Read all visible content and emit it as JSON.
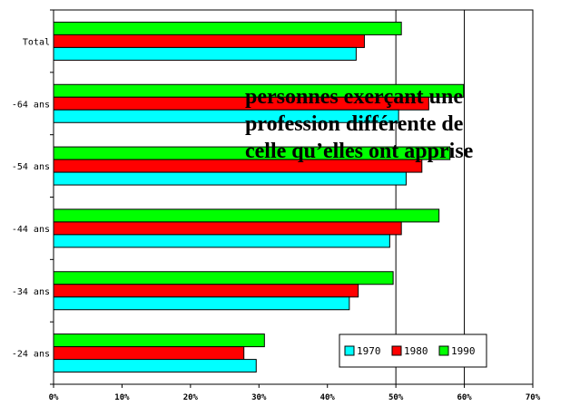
{
  "chart_data": {
    "type": "bar",
    "orientation": "horizontal",
    "categories": [
      "Total",
      "55-64 ans",
      "45-54 ans",
      "35-44 ans",
      "25-34 ans",
      "15-24 ans"
    ],
    "category_labels_visible": [
      "Total",
      "-64 ans",
      "-54 ans",
      "-44 ans",
      "-34 ans",
      "-24 ans"
    ],
    "series": [
      {
        "name": "1970",
        "color": "#00ffff",
        "values": [
          44.2,
          50.4,
          51.5,
          49.1,
          43.2,
          29.6
        ]
      },
      {
        "name": "1980",
        "color": "#ff0000",
        "values": [
          45.4,
          54.8,
          53.8,
          50.8,
          44.5,
          27.8
        ]
      },
      {
        "name": "1990",
        "color": "#00ff00",
        "values": [
          50.8,
          59.9,
          57.9,
          56.3,
          49.6,
          30.8
        ]
      }
    ],
    "xlim": [
      0,
      70
    ],
    "x_ticks": [
      "0%",
      "10%",
      "20%",
      "30%",
      "40%",
      "50%",
      "60%",
      "70%"
    ],
    "grid": "vertical gridlines at 50% and 60%",
    "legend_position": "bottom-right inside plot",
    "annotation": [
      "personnes exerçant une",
      "profession différente de",
      "celle qu’elles ont apprise"
    ]
  }
}
